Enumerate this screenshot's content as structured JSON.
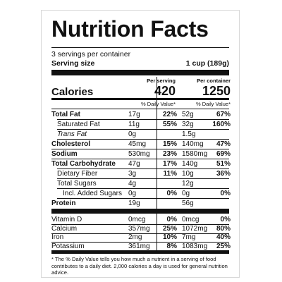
{
  "title": "Nutrition Facts",
  "servings_per_container": "3 servings per container",
  "serving_size_label": "Serving size",
  "serving_size_value": "1 cup (189g)",
  "calories": {
    "label": "Calories",
    "per_serving_label": "Per serving",
    "per_serving": "420",
    "per_container_label": "Per container",
    "per_container": "1250"
  },
  "dv_header": "% Daily Value*",
  "nutrients": [
    {
      "name": "Total Fat",
      "bold": true,
      "indent": 0,
      "italic": false,
      "s_amt": "17g",
      "s_dv": "22%",
      "c_amt": "52g",
      "c_dv": "67%"
    },
    {
      "name": "Saturated Fat",
      "bold": false,
      "indent": 1,
      "italic": false,
      "s_amt": "11g",
      "s_dv": "55%",
      "c_amt": "32g",
      "c_dv": "160%"
    },
    {
      "name": "Trans Fat",
      "bold": false,
      "indent": 1,
      "italic": true,
      "s_amt": "0g",
      "s_dv": "",
      "c_amt": "1.5g",
      "c_dv": ""
    },
    {
      "name": "Cholesterol",
      "bold": true,
      "indent": 0,
      "italic": false,
      "s_amt": "45mg",
      "s_dv": "15%",
      "c_amt": "140mg",
      "c_dv": "47%"
    },
    {
      "name": "Sodium",
      "bold": true,
      "indent": 0,
      "italic": false,
      "s_amt": "530mg",
      "s_dv": "23%",
      "c_amt": "1580mg",
      "c_dv": "69%"
    },
    {
      "name": "Total Carbohydrate",
      "bold": true,
      "indent": 0,
      "italic": false,
      "s_amt": "47g",
      "s_dv": "17%",
      "c_amt": "140g",
      "c_dv": "51%"
    },
    {
      "name": "Dietary Fiber",
      "bold": false,
      "indent": 1,
      "italic": false,
      "s_amt": "3g",
      "s_dv": "11%",
      "c_amt": "10g",
      "c_dv": "36%"
    },
    {
      "name": "Total Sugars",
      "bold": false,
      "indent": 1,
      "italic": false,
      "s_amt": "4g",
      "s_dv": "",
      "c_amt": "12g",
      "c_dv": ""
    },
    {
      "name": "Incl. Added Sugars",
      "bold": false,
      "indent": 2,
      "italic": false,
      "s_amt": "0g",
      "s_dv": "0%",
      "c_amt": "0g",
      "c_dv": "0%"
    },
    {
      "name": "Protein",
      "bold": true,
      "indent": 0,
      "italic": false,
      "s_amt": "19g",
      "s_dv": "",
      "c_amt": "56g",
      "c_dv": ""
    }
  ],
  "vitamins": [
    {
      "name": "Vitamin D",
      "s_amt": "0mcg",
      "s_dv": "0%",
      "c_amt": "0mcg",
      "c_dv": "0%"
    },
    {
      "name": "Calcium",
      "s_amt": "357mg",
      "s_dv": "25%",
      "c_amt": "1072mg",
      "c_dv": "80%"
    },
    {
      "name": "Iron",
      "s_amt": "2mg",
      "s_dv": "10%",
      "c_amt": "7mg",
      "c_dv": "40%"
    },
    {
      "name": "Potassium",
      "s_amt": "361mg",
      "s_dv": "8%",
      "c_amt": "1083mg",
      "c_dv": "25%"
    }
  ],
  "footnote": "* The % Daily Value tells you how much a nutrient in a serving of food contributes to a daily diet. 2,000 calories a day is used for general nutrition advice."
}
